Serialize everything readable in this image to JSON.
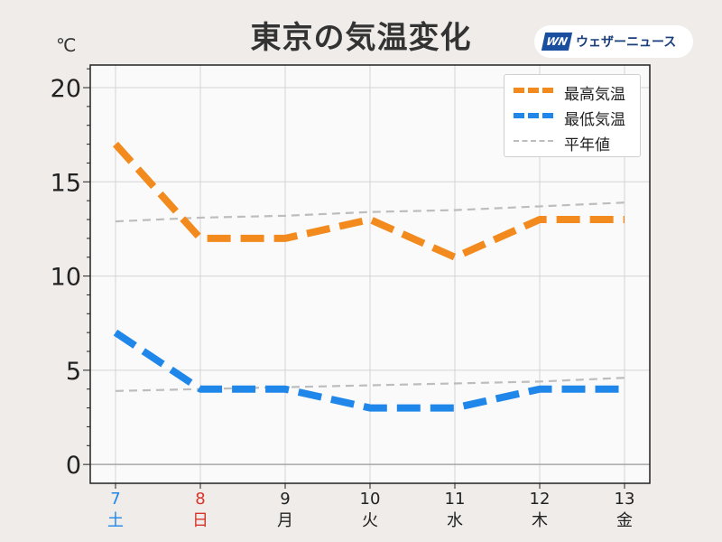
{
  "title": "東京の気温変化",
  "unit_label": "℃",
  "brand": {
    "logo_text": "WN",
    "name": "ウェザーニュース"
  },
  "colors": {
    "high": "#f28a1e",
    "low": "#1f86ea",
    "normal": "#bdbdbd",
    "saturday": "#1f86ea",
    "sunday": "#d9342b",
    "weekday": "#222222"
  },
  "chart_data": {
    "type": "line",
    "x": [
      "7",
      "8",
      "9",
      "10",
      "11",
      "12",
      "13"
    ],
    "weekdays": [
      "土",
      "日",
      "月",
      "火",
      "水",
      "木",
      "金"
    ],
    "ylim": [
      -1,
      21.2
    ],
    "yticks": [
      0,
      5,
      10,
      15,
      20
    ],
    "grid": true,
    "legend_position": "top-right",
    "series": [
      {
        "name": "最高気温",
        "values": [
          17,
          12,
          12,
          13,
          11,
          13,
          13
        ],
        "style": "thick-dashed",
        "color": "#f28a1e"
      },
      {
        "name": "最低気温",
        "values": [
          7,
          4,
          4,
          3,
          3,
          4,
          4
        ],
        "style": "thick-dashed",
        "color": "#1f86ea"
      },
      {
        "name": "平年値",
        "values": [
          12.9,
          13.1,
          13.2,
          13.4,
          13.5,
          13.7,
          13.9
        ],
        "style": "thin-dashed",
        "color": "#bdbdbd"
      },
      {
        "name": "",
        "values": [
          3.9,
          4.0,
          4.1,
          4.2,
          4.3,
          4.4,
          4.6
        ],
        "style": "thin-dashed",
        "color": "#bdbdbd"
      }
    ]
  }
}
